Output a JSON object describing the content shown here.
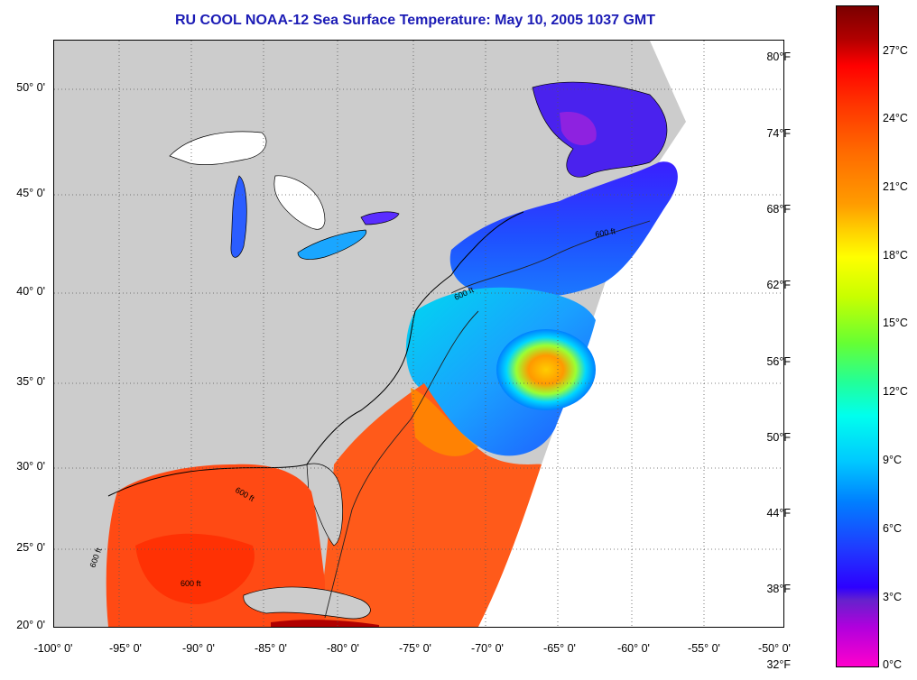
{
  "title": "RU COOL  NOAA-12  Sea Surface Temperature:  May 10, 2005 1037 GMT",
  "map": {
    "lat_labels": [
      "50° 0'",
      "45° 0'",
      "40° 0'",
      "35° 0'",
      "30° 0'",
      "25° 0'",
      "20° 0'"
    ],
    "lon_labels": [
      "-100° 0'",
      "-95° 0'",
      "-90° 0'",
      "-85° 0'",
      "-80° 0'",
      "-75° 0'",
      "-70° 0'",
      "-65° 0'",
      "-60° 0'",
      "-55° 0'",
      "-50° 0'"
    ],
    "contour_label": "600 ft",
    "land_color": "#cccccc",
    "no_data_color": "#ffffff"
  },
  "colorbar": {
    "fahrenheit_labels": [
      "80°F",
      "74°F",
      "68°F",
      "62°F",
      "56°F",
      "50°F",
      "44°F",
      "38°F",
      "32°F"
    ],
    "celsius_labels": [
      "27°C",
      "24°C",
      "21°C",
      "18°C",
      "15°C",
      "12°C",
      "9°C",
      "6°C",
      "3°C",
      "0°C"
    ]
  }
}
